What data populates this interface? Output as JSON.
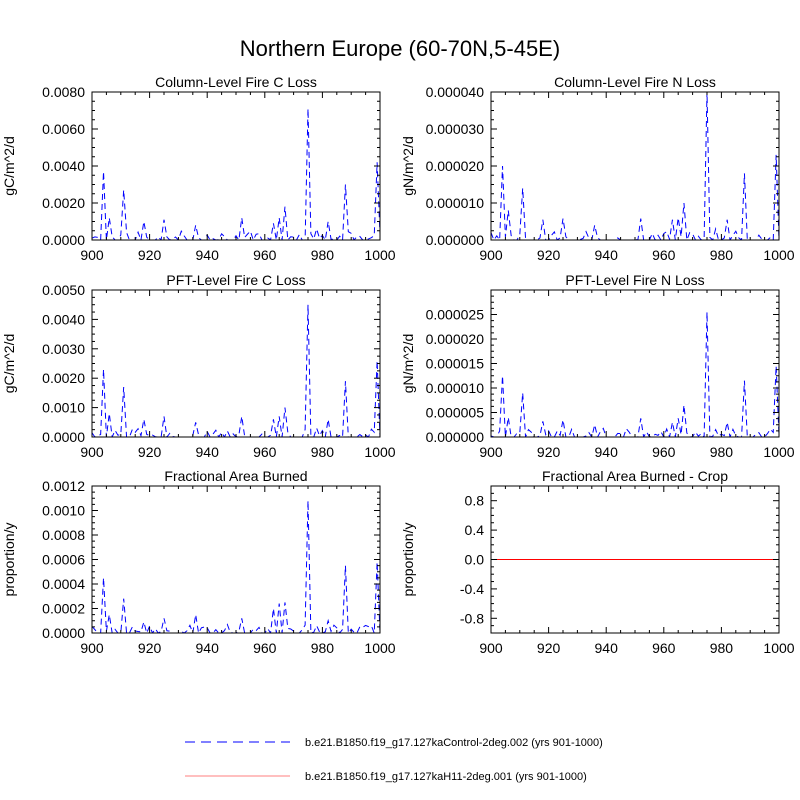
{
  "figure_title": "Northern Europe (60-70N,5-45E)",
  "legend": [
    {
      "label": "b.e21.B1850.f19_g17.127kaControl-2deg.002 (yrs 901-1000)",
      "color": "#0000ff",
      "style": "dashed"
    },
    {
      "label": "b.e21.B1850.f19_g17.127kaH11-2deg.001 (yrs 901-1000)",
      "color": "#ff0000",
      "style": "solid"
    }
  ],
  "chart_data": [
    {
      "type": "line",
      "title": "Column-Level Fire C Loss",
      "xlabel": "",
      "ylabel": "gC/m^2/d",
      "xlim": [
        900,
        1000
      ],
      "ylim": [
        0,
        0.008
      ],
      "xticks": [
        "900",
        "920",
        "940",
        "960",
        "980",
        "1000"
      ],
      "yticks": [
        "0.0000",
        "0.0020",
        "0.0040",
        "0.0060",
        "0.0080"
      ],
      "peaks": [
        [
          904,
          0.0037
        ],
        [
          906,
          0.0012
        ],
        [
          911,
          0.0027
        ],
        [
          918,
          0.001
        ],
        [
          925,
          0.0011
        ],
        [
          936,
          0.0008
        ],
        [
          952,
          0.0012
        ],
        [
          963,
          0.0009
        ],
        [
          965,
          0.0012
        ],
        [
          967,
          0.0018
        ],
        [
          975,
          0.0071
        ],
        [
          978,
          0.0006
        ],
        [
          982,
          0.001
        ],
        [
          988,
          0.003
        ],
        [
          999,
          0.0042
        ]
      ],
      "series": [
        {
          "name": "b.e21.B1850.f19_g17.127kaControl-2deg.002 (yrs 901-1000)",
          "color": "#0000ff",
          "dash": "dashed"
        },
        {
          "name": "b.e21.B1850.f19_g17.127kaH11-2deg.001 (yrs 901-1000)",
          "color": "#ff0000",
          "dash": "solid",
          "constant": 0
        }
      ]
    },
    {
      "type": "line",
      "title": "Column-Level Fire N Loss",
      "xlabel": "",
      "ylabel": "gN/m^2/d",
      "xlim": [
        900,
        1000
      ],
      "ylim": [
        0,
        4e-05
      ],
      "xticks": [
        "900",
        "920",
        "940",
        "960",
        "980",
        "1000"
      ],
      "yticks": [
        "0.000000",
        "0.000010",
        "0.000020",
        "0.000030",
        "0.000040"
      ],
      "peaks": [
        [
          904,
          2e-05
        ],
        [
          906,
          8e-06
        ],
        [
          911,
          1.4e-05
        ],
        [
          918,
          5.5e-06
        ],
        [
          925,
          5.8e-06
        ],
        [
          936,
          4e-06
        ],
        [
          952,
          5.8e-06
        ],
        [
          963,
          5.5e-06
        ],
        [
          965,
          6e-06
        ],
        [
          967,
          1e-05
        ],
        [
          975,
          4e-05
        ],
        [
          978,
          3e-06
        ],
        [
          982,
          5.5e-06
        ],
        [
          988,
          1.8e-05
        ],
        [
          999,
          2.3e-05
        ]
      ],
      "series": [
        {
          "name": "b.e21.B1850.f19_g17.127kaControl-2deg.002 (yrs 901-1000)",
          "color": "#0000ff",
          "dash": "dashed"
        },
        {
          "name": "b.e21.B1850.f19_g17.127kaH11-2deg.001 (yrs 901-1000)",
          "color": "#ff0000",
          "dash": "solid",
          "constant": 0
        }
      ]
    },
    {
      "type": "line",
      "title": "PFT-Level Fire C Loss",
      "xlabel": "",
      "ylabel": "gC/m^2/d",
      "xlim": [
        900,
        1000
      ],
      "ylim": [
        0,
        0.005
      ],
      "xticks": [
        "900",
        "920",
        "940",
        "960",
        "980",
        "1000"
      ],
      "yticks": [
        "0.0000",
        "0.0010",
        "0.0020",
        "0.0030",
        "0.0040",
        "0.0050"
      ],
      "peaks": [
        [
          904,
          0.0023
        ],
        [
          906,
          0.0008
        ],
        [
          911,
          0.0017
        ],
        [
          918,
          0.0006
        ],
        [
          925,
          0.0007
        ],
        [
          936,
          0.0005
        ],
        [
          952,
          0.0007
        ],
        [
          963,
          0.0006
        ],
        [
          965,
          0.0007
        ],
        [
          967,
          0.001
        ],
        [
          975,
          0.0045
        ],
        [
          978,
          0.0003
        ],
        [
          982,
          0.0006
        ],
        [
          988,
          0.0019
        ],
        [
          999,
          0.0026
        ]
      ],
      "series": [
        {
          "name": "b.e21.B1850.f19_g17.127kaControl-2deg.002 (yrs 901-1000)",
          "color": "#0000ff",
          "dash": "dashed"
        },
        {
          "name": "b.e21.B1850.f19_g17.127kaH11-2deg.001 (yrs 901-1000)",
          "color": "#ff0000",
          "dash": "solid",
          "constant": 0
        }
      ]
    },
    {
      "type": "line",
      "title": "PFT-Level Fire N Loss",
      "xlabel": "",
      "ylabel": "gN/m^2/d",
      "xlim": [
        900,
        1000
      ],
      "ylim": [
        0,
        3e-05
      ],
      "xticks": [
        "900",
        "920",
        "940",
        "960",
        "980",
        "1000"
      ],
      "yticks": [
        "0.000000",
        "0.000005",
        "0.000010",
        "0.000015",
        "0.000020",
        "0.000025"
      ],
      "peaks": [
        [
          904,
          1.25e-05
        ],
        [
          906,
          4e-06
        ],
        [
          911,
          9e-06
        ],
        [
          918,
          3.2e-06
        ],
        [
          925,
          3.5e-06
        ],
        [
          936,
          2.5e-06
        ],
        [
          952,
          3.8e-06
        ],
        [
          963,
          3e-06
        ],
        [
          965,
          3.8e-06
        ],
        [
          967,
          6.5e-06
        ],
        [
          975,
          2.55e-05
        ],
        [
          978,
          1.5e-06
        ],
        [
          982,
          3e-06
        ],
        [
          988,
          1.15e-05
        ],
        [
          999,
          1.45e-05
        ]
      ],
      "series": [
        {
          "name": "b.e21.B1850.f19_g17.127kaControl-2deg.002 (yrs 901-1000)",
          "color": "#0000ff",
          "dash": "dashed"
        },
        {
          "name": "b.e21.B1850.f19_g17.127kaH11-2deg.001 (yrs 901-1000)",
          "color": "#ff0000",
          "dash": "solid",
          "constant": 0
        }
      ]
    },
    {
      "type": "line",
      "title": "Fractional Area Burned",
      "xlabel": "",
      "ylabel": "proportion/y",
      "xlim": [
        900,
        1000
      ],
      "ylim": [
        0,
        0.0012
      ],
      "xticks": [
        "900",
        "920",
        "940",
        "960",
        "980",
        "1000"
      ],
      "yticks": [
        "0.0000",
        "0.0002",
        "0.0004",
        "0.0006",
        "0.0008",
        "0.0010",
        "0.0012"
      ],
      "peaks": [
        [
          904,
          0.00045
        ],
        [
          906,
          0.00015
        ],
        [
          911,
          0.00028
        ],
        [
          918,
          9e-05
        ],
        [
          925,
          0.00012
        ],
        [
          936,
          0.00015
        ],
        [
          952,
          0.00012
        ],
        [
          963,
          0.0002
        ],
        [
          965,
          0.00024
        ],
        [
          967,
          0.00025
        ],
        [
          975,
          0.00108
        ],
        [
          978,
          6e-05
        ],
        [
          982,
          0.0001
        ],
        [
          988,
          0.00055
        ],
        [
          999,
          0.00058
        ]
      ],
      "series": [
        {
          "name": "b.e21.B1850.f19_g17.127kaControl-2deg.002 (yrs 901-1000)",
          "color": "#0000ff",
          "dash": "dashed"
        },
        {
          "name": "b.e21.B1850.f19_g17.127kaH11-2deg.001 (yrs 901-1000)",
          "color": "#ff0000",
          "dash": "solid",
          "constant": 0
        }
      ]
    },
    {
      "type": "line",
      "title": "Fractional Area Burned - Crop",
      "xlabel": "",
      "ylabel": "proportion/y",
      "xlim": [
        900,
        1000
      ],
      "ylim": [
        -1.0,
        1.0
      ],
      "xticks": [
        "900",
        "920",
        "940",
        "960",
        "980",
        "1000"
      ],
      "yticks": [
        "-0.8",
        "-0.4",
        "0.0",
        "0.4",
        "0.8"
      ],
      "peaks": [],
      "series": [
        {
          "name": "b.e21.B1850.f19_g17.127kaControl-2deg.002 (yrs 901-1000)",
          "color": "#0000ff",
          "dash": "dashed",
          "constant": 0
        },
        {
          "name": "b.e21.B1850.f19_g17.127kaH11-2deg.001 (yrs 901-1000)",
          "color": "#ff0000",
          "dash": "solid",
          "constant": 0
        }
      ]
    }
  ]
}
